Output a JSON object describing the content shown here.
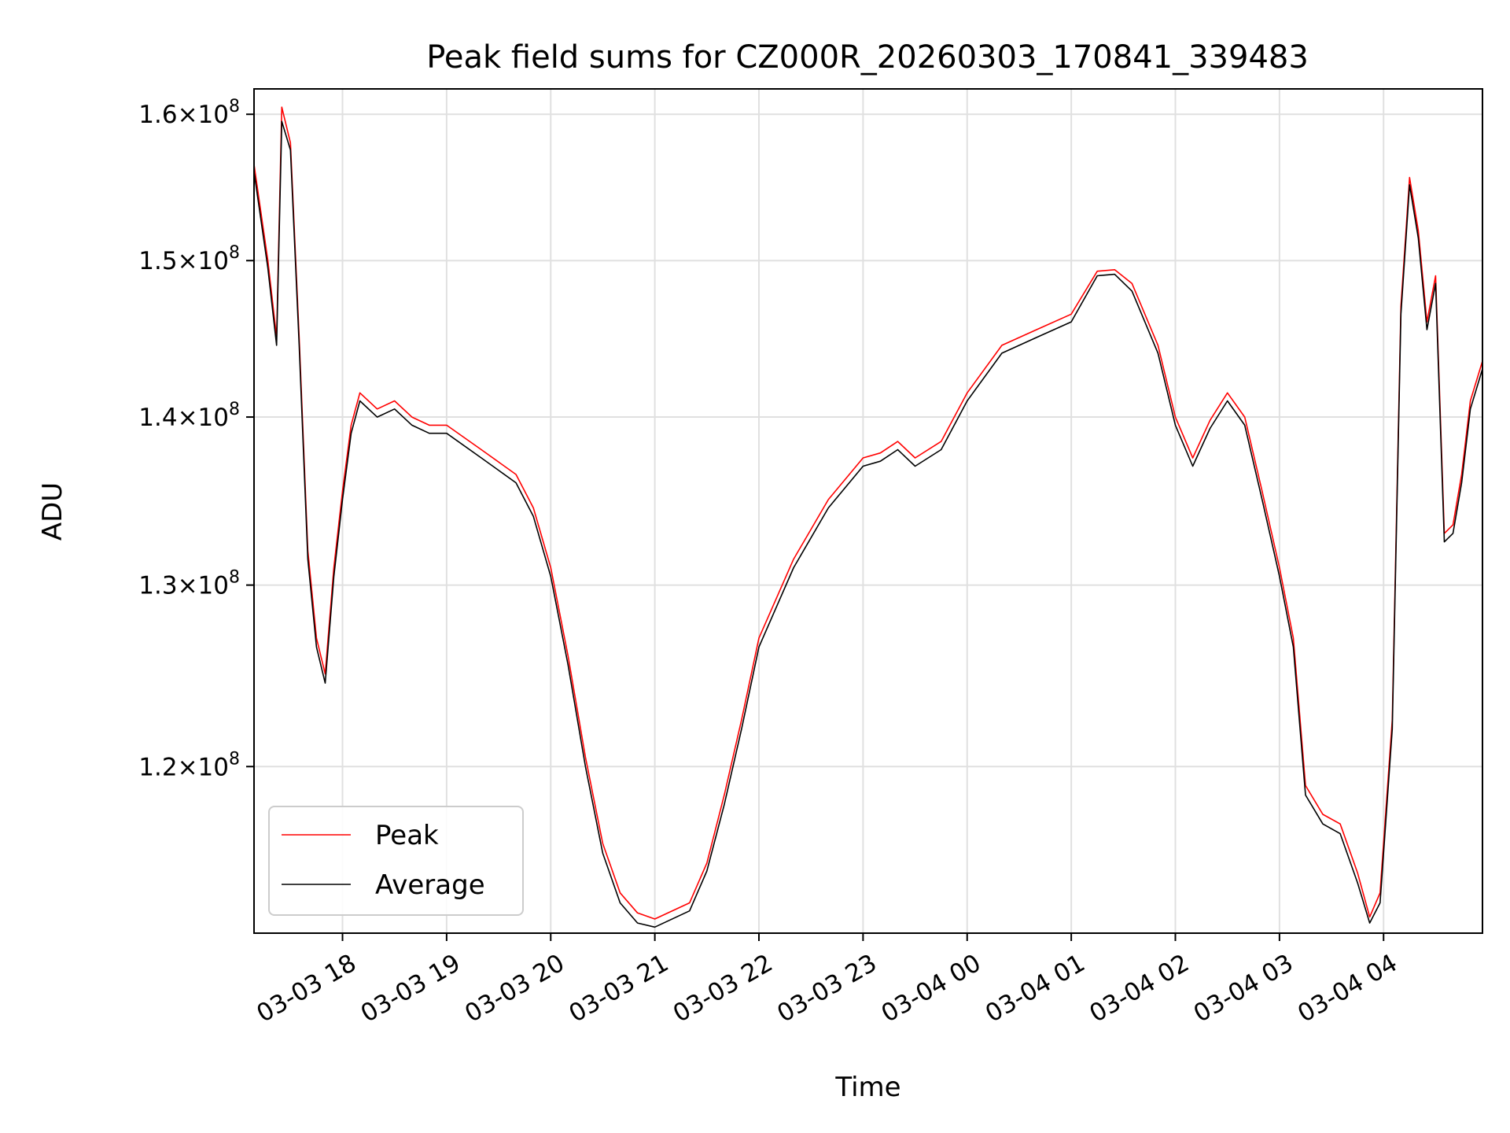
{
  "chart_data": {
    "type": "line",
    "title": "Peak field sums for CZ000R_20260303_170841_339483",
    "xlabel": "Time",
    "ylabel": "ADU",
    "y_scale": "log",
    "ylim": [
      111500000,
      161800000
    ],
    "xlim": [
      "03-03 17:09",
      "03-04 04:57"
    ],
    "x_ticks": [
      "03-03 18",
      "03-03 19",
      "03-03 20",
      "03-03 21",
      "03-03 22",
      "03-03 23",
      "03-04 00",
      "03-04 01",
      "03-04 02",
      "03-04 03",
      "03-04 04"
    ],
    "y_ticks": [
      {
        "value": 120000000,
        "mantissa": "1.2",
        "exponent": "8"
      },
      {
        "value": 130000000,
        "mantissa": "1.3",
        "exponent": "8"
      },
      {
        "value": 140000000,
        "mantissa": "1.4",
        "exponent": "8"
      },
      {
        "value": 150000000,
        "mantissa": "1.5",
        "exponent": "8"
      },
      {
        "value": 160000000,
        "mantissa": "1.6",
        "exponent": "8"
      }
    ],
    "grid": true,
    "legend_position": "bottom-left",
    "x": [
      "03-03 17:09",
      "03-03 17:17",
      "03-03 17:22",
      "03-03 17:25",
      "03-03 17:30",
      "03-03 17:35",
      "03-03 17:40",
      "03-03 17:45",
      "03-03 17:50",
      "03-03 17:55",
      "03-03 18:00",
      "03-03 18:05",
      "03-03 18:10",
      "03-03 18:20",
      "03-03 18:30",
      "03-03 18:40",
      "03-03 18:50",
      "03-03 19:00",
      "03-03 19:20",
      "03-03 19:40",
      "03-03 19:50",
      "03-03 20:00",
      "03-03 20:10",
      "03-03 20:20",
      "03-03 20:30",
      "03-03 20:40",
      "03-03 20:50",
      "03-03 21:00",
      "03-03 21:20",
      "03-03 21:30",
      "03-03 21:40",
      "03-03 21:50",
      "03-03 22:00",
      "03-03 22:20",
      "03-03 22:40",
      "03-03 23:00",
      "03-03 23:10",
      "03-03 23:20",
      "03-03 23:30",
      "03-03 23:45",
      "03-04 00:00",
      "03-04 00:20",
      "03-04 00:40",
      "03-04 01:00",
      "03-04 01:15",
      "03-04 01:25",
      "03-04 01:35",
      "03-04 01:50",
      "03-04 02:00",
      "03-04 02:10",
      "03-04 02:20",
      "03-04 02:30",
      "03-04 02:40",
      "03-04 02:50",
      "03-04 03:00",
      "03-04 03:08",
      "03-04 03:15",
      "03-04 03:25",
      "03-04 03:35",
      "03-04 03:45",
      "03-04 03:52",
      "03-04 03:58",
      "03-04 04:05",
      "03-04 04:10",
      "03-04 04:15",
      "03-04 04:20",
      "03-04 04:25",
      "03-04 04:30",
      "03-04 04:35",
      "03-04 04:40",
      "03-04 04:45",
      "03-04 04:50",
      "03-04 04:57"
    ],
    "series": [
      {
        "name": "Peak",
        "color": "#ff0000",
        "values": [
          156500000,
          150000000,
          145000000,
          160500000,
          158000000,
          145000000,
          132000000,
          127000000,
          125000000,
          131000000,
          135500000,
          139500000,
          141500000,
          140500000,
          141000000,
          140000000,
          139500000,
          139500000,
          138000000,
          136500000,
          134500000,
          131000000,
          126000000,
          120500000,
          116000000,
          113500000,
          112500000,
          112200000,
          113000000,
          115000000,
          118500000,
          122500000,
          127000000,
          131500000,
          135000000,
          137500000,
          137800000,
          138500000,
          137500000,
          138500000,
          141500000,
          144500000,
          145500000,
          146500000,
          149300000,
          149400000,
          148500000,
          144500000,
          140000000,
          137500000,
          139800000,
          141500000,
          140000000,
          135500000,
          131000000,
          127000000,
          119000000,
          117500000,
          117000000,
          114500000,
          112300000,
          113500000,
          122500000,
          147000000,
          155600000,
          152000000,
          146000000,
          149000000,
          133000000,
          133500000,
          136500000,
          141000000,
          143500000
        ]
      },
      {
        "name": "Average",
        "color": "#000000",
        "values": [
          156000000,
          149500000,
          144500000,
          159500000,
          157500000,
          144500000,
          131500000,
          126500000,
          124500000,
          130500000,
          135000000,
          139000000,
          141000000,
          140000000,
          140500000,
          139500000,
          139000000,
          139000000,
          137500000,
          136000000,
          134000000,
          130500000,
          125500000,
          120000000,
          115500000,
          113000000,
          112000000,
          111800000,
          112600000,
          114600000,
          118000000,
          122000000,
          126500000,
          131000000,
          134500000,
          137000000,
          137300000,
          138000000,
          137000000,
          138000000,
          141000000,
          144000000,
          145000000,
          146000000,
          149000000,
          149100000,
          148000000,
          144000000,
          139500000,
          137000000,
          139300000,
          141000000,
          139500000,
          135000000,
          130500000,
          126500000,
          118500000,
          117000000,
          116500000,
          114000000,
          112000000,
          113000000,
          122000000,
          146500000,
          155100000,
          151500000,
          145500000,
          148500000,
          132500000,
          133000000,
          136000000,
          140500000,
          143000000
        ]
      }
    ]
  }
}
